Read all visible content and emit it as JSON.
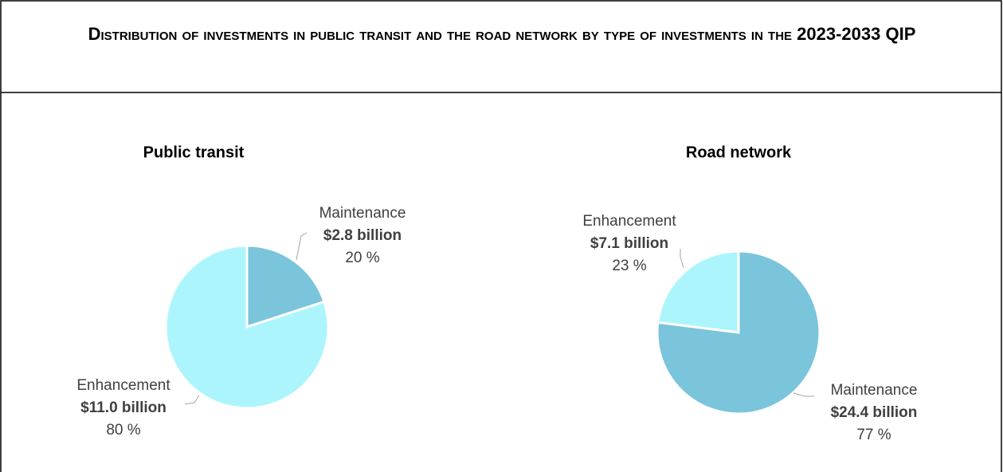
{
  "title": "Distribution of investments in public transit and the road network by type of investments in the 2023-2033 QIP",
  "chart_data": [
    {
      "type": "pie",
      "title": "Public transit",
      "categories": [
        "Maintenance",
        "Enhancement"
      ],
      "values": [
        20,
        80
      ],
      "value_labels": [
        "20 %",
        "80 %"
      ],
      "amounts": [
        2.8,
        11.0
      ],
      "amount_labels": [
        "$2.8 billion",
        "$11.0 billion"
      ],
      "colors": [
        "#7ac4dc",
        "#adf5fc"
      ]
    },
    {
      "type": "pie",
      "title": "Road network",
      "categories": [
        "Maintenance",
        "Enhancement"
      ],
      "values": [
        77,
        23
      ],
      "value_labels": [
        "77 %",
        "23 %"
      ],
      "amounts": [
        24.4,
        7.1
      ],
      "amount_labels": [
        "$24.4 billion",
        "$7.1 billion"
      ],
      "colors": [
        "#7ac4dc",
        "#adf5fc"
      ]
    }
  ]
}
